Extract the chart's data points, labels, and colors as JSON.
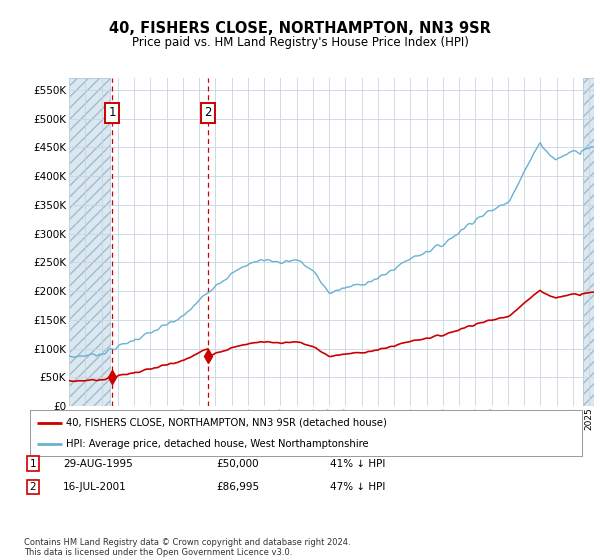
{
  "title": "40, FISHERS CLOSE, NORTHAMPTON, NN3 9SR",
  "subtitle": "Price paid vs. HM Land Registry's House Price Index (HPI)",
  "purchases": [
    {
      "year": 1995.66,
      "price": 50000,
      "label": "1"
    },
    {
      "year": 2001.54,
      "price": 86995,
      "label": "2"
    }
  ],
  "legend_entries": [
    "40, FISHERS CLOSE, NORTHAMPTON, NN3 9SR (detached house)",
    "HPI: Average price, detached house, West Northamptonshire"
  ],
  "table_rows": [
    {
      "num": "1",
      "date": "29-AUG-1995",
      "price": "£50,000",
      "note": "41% ↓ HPI"
    },
    {
      "num": "2",
      "date": "16-JUL-2001",
      "price": "£86,995",
      "note": "47% ↓ HPI"
    }
  ],
  "footnote": "Contains HM Land Registry data © Crown copyright and database right 2024.\nThis data is licensed under the Open Government Licence v3.0.",
  "hpi_line_color": "#6ab0d4",
  "price_line_color": "#cc0000",
  "marker_color": "#cc0000",
  "dashed_line_color": "#cc0000",
  "ylim": [
    0,
    570000
  ],
  "yticks": [
    0,
    50000,
    100000,
    150000,
    200000,
    250000,
    300000,
    350000,
    400000,
    450000,
    500000,
    550000
  ],
  "grid_color": "#c8d4e0",
  "hatch_fill_color": "#dce8f0",
  "hatch_edge_color": "#a0bcd0",
  "xmin": 1993,
  "xmax": 2025.3,
  "hatch_left_end": 1995.5,
  "hatch_right_start": 2024.6
}
